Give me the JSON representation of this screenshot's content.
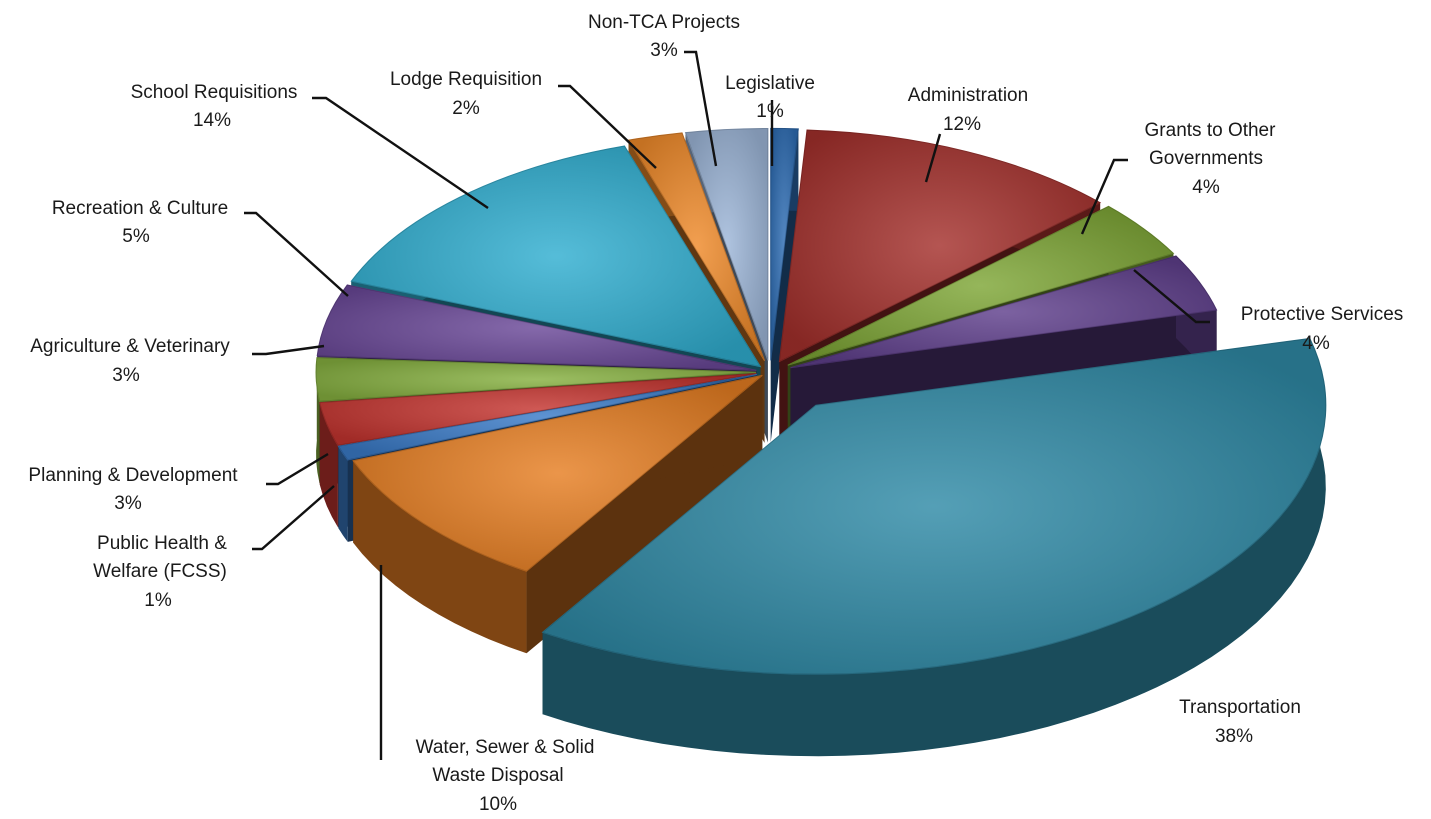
{
  "chart_data": {
    "type": "pie",
    "style": "3d-exploded",
    "title": "",
    "slices": [
      {
        "label": "Legislative",
        "value": 1,
        "value_label": "1%",
        "color": "#2e6db4"
      },
      {
        "label": "Administration",
        "value": 12,
        "value_label": "12%",
        "color": "#a4302c"
      },
      {
        "label": "Grants to Other Governments",
        "value": 4,
        "value_label": "4%",
        "color": "#7ea636"
      },
      {
        "label": "Protective Services",
        "value": 4,
        "value_label": "4%",
        "color": "#5f3f8c"
      },
      {
        "label": "Transportation",
        "value": 38,
        "value_label": "38%",
        "color": "#2f8aa6"
      },
      {
        "label": "Water, Sewer & Solid Waste Disposal",
        "value": 10,
        "value_label": "10%",
        "color": "#e67e22"
      },
      {
        "label": "Public Health & Welfare (FCSS)",
        "value": 1,
        "value_label": "1%",
        "color": "#3a7bc8"
      },
      {
        "label": "Planning & Development",
        "value": 3,
        "value_label": "3%",
        "color": "#c4342f"
      },
      {
        "label": "Agriculture & Veterinary",
        "value": 3,
        "value_label": "3%",
        "color": "#86b040"
      },
      {
        "label": "Recreation & Culture",
        "value": 5,
        "value_label": "5%",
        "color": "#6a4898"
      },
      {
        "label": "School Requisitions",
        "value": 14,
        "value_label": "14%",
        "color": "#30aed0"
      },
      {
        "label": "Lodge Requisition",
        "value": 2,
        "value_label": "2%",
        "color": "#ef8a2a"
      },
      {
        "label": "Non-TCA Projects",
        "value": 3,
        "value_label": "3%",
        "color": "#9db6d8"
      }
    ]
  }
}
